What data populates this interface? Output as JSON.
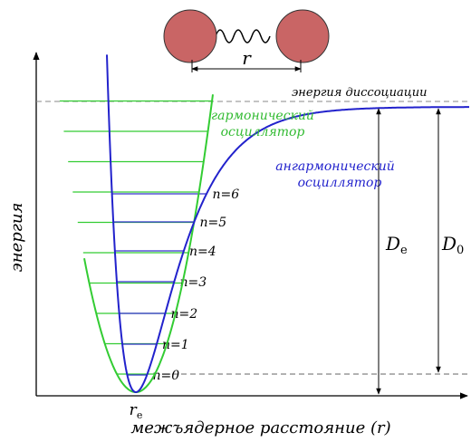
{
  "molecule": {
    "distance_label": "r"
  },
  "dissociation_label": "энергия диссоциации",
  "harmonic_label": [
    "гармонический",
    "осциллятор"
  ],
  "anharmonic_label": [
    "ангармонический",
    "осциллятор"
  ],
  "levels": [
    "n=0",
    "n=1",
    "n=2",
    "n=3",
    "n=4",
    "n=5",
    "n=6"
  ],
  "De": {
    "main": "D",
    "sub": "e"
  },
  "D0": {
    "main": "D",
    "sub": "0"
  },
  "y_axis_label": "энергия",
  "x_axis_label": "межъядерное расстояние (r)",
  "re": {
    "main": "r",
    "sub": "e"
  }
}
